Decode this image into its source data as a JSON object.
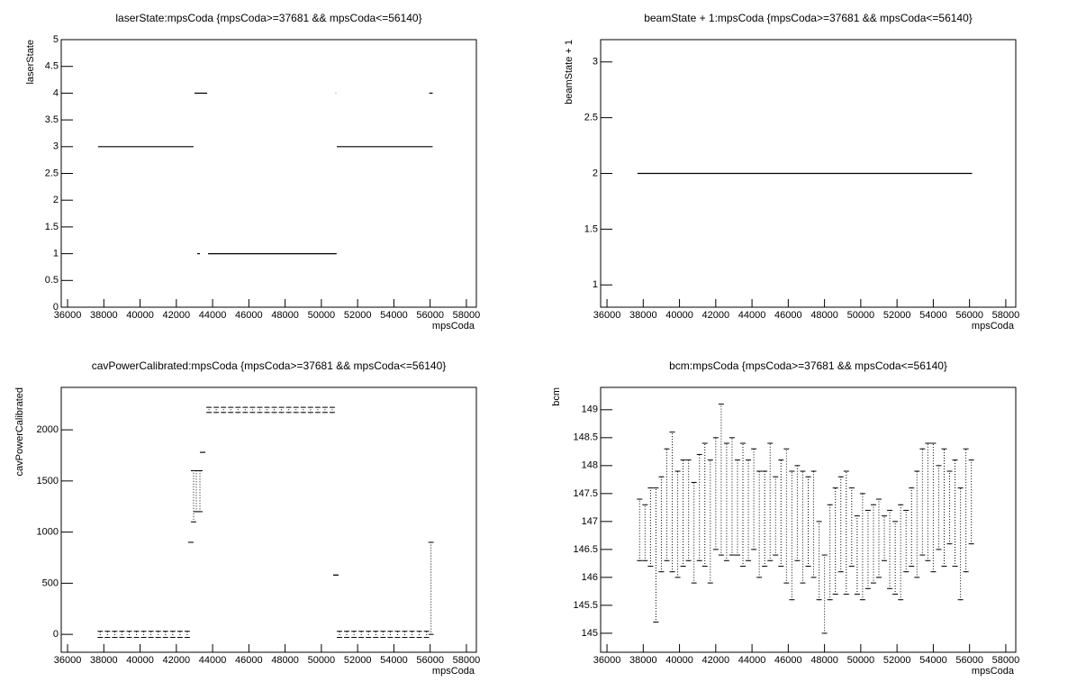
{
  "chart_data": [
    {
      "type": "line",
      "title": "laserState:mpsCoda {mpsCoda>=37681 && mpsCoda<=56140}",
      "xlabel": "mpsCoda",
      "ylabel": "laserState",
      "color": "#000000",
      "series": [
        {
          "x": [
            37681,
            42950
          ],
          "values": [
            3,
            3
          ]
        },
        {
          "x": [
            43000,
            43700
          ],
          "values": [
            4,
            4
          ]
        },
        {
          "x": [
            43150,
            43300
          ],
          "values": [
            1,
            1
          ]
        },
        {
          "x": [
            43750,
            50840
          ],
          "values": [
            1,
            1
          ]
        },
        {
          "x": [
            50790,
            50810
          ],
          "values": [
            4,
            4
          ]
        },
        {
          "x": [
            50850,
            56140
          ],
          "values": [
            3,
            3
          ]
        },
        {
          "x": [
            55950,
            56140
          ],
          "values": [
            4,
            4
          ]
        }
      ],
      "xlim": [
        35650,
        58550
      ],
      "xticks": [
        36000,
        38000,
        40000,
        42000,
        44000,
        46000,
        48000,
        50000,
        52000,
        54000,
        56000,
        58000
      ],
      "ylim": [
        0,
        5
      ],
      "yticks": [
        0,
        0.5,
        1,
        1.5,
        2,
        2.5,
        3,
        3.5,
        4,
        4.5,
        5
      ]
    },
    {
      "type": "line",
      "title": "beamState + 1:mpsCoda {mpsCoda>=37681 && mpsCoda<=56140}",
      "xlabel": "mpsCoda",
      "ylabel": "beamState + 1",
      "color": "#000000",
      "series": [
        {
          "x": [
            37681,
            56140
          ],
          "values": [
            2,
            2
          ]
        }
      ],
      "xlim": [
        35650,
        58550
      ],
      "xticks": [
        36000,
        38000,
        40000,
        42000,
        44000,
        46000,
        48000,
        50000,
        52000,
        54000,
        56000,
        58000
      ],
      "ylim": [
        0.8,
        3.2
      ],
      "yticks": [
        1,
        1.5,
        2,
        2.5,
        3
      ]
    },
    {
      "type": "range",
      "title": "cavPowerCalibrated:mpsCoda {mpsCoda>=37681 && mpsCoda<=56140}",
      "xlabel": "mpsCoda",
      "ylabel": "cavPowerCalibrated",
      "color": "#000000",
      "x": [
        37800,
        38200,
        38600,
        39000,
        39400,
        39800,
        40200,
        40600,
        41000,
        41400,
        41800,
        42200,
        42600,
        42800,
        42950,
        43100,
        43300,
        43450,
        43800,
        44200,
        44600,
        45000,
        45400,
        45800,
        46200,
        46600,
        47000,
        47400,
        47800,
        48200,
        48600,
        49000,
        49400,
        49800,
        50200,
        50600,
        50800,
        51000,
        51400,
        51800,
        52200,
        52600,
        53000,
        53400,
        53800,
        54200,
        54600,
        55000,
        55400,
        55800,
        56050
      ],
      "low": [
        -30,
        -30,
        -30,
        -30,
        -30,
        -30,
        -30,
        -30,
        -30,
        -30,
        -30,
        -30,
        -30,
        900,
        1100,
        1200,
        1200,
        1780,
        2170,
        2170,
        2170,
        2170,
        2170,
        2170,
        2170,
        2170,
        2170,
        2170,
        2170,
        2170,
        2170,
        2170,
        2170,
        2170,
        2170,
        2170,
        580,
        -30,
        -30,
        -30,
        -30,
        -30,
        -30,
        -30,
        -30,
        -30,
        -30,
        -30,
        -30,
        -30,
        0
      ],
      "high": [
        30,
        30,
        30,
        30,
        30,
        30,
        30,
        30,
        30,
        30,
        30,
        30,
        30,
        900,
        1600,
        1600,
        1600,
        1780,
        2220,
        2220,
        2220,
        2220,
        2220,
        2220,
        2220,
        2220,
        2220,
        2220,
        2220,
        2220,
        2220,
        2220,
        2220,
        2220,
        2220,
        2220,
        580,
        30,
        30,
        30,
        30,
        30,
        30,
        30,
        30,
        30,
        30,
        30,
        30,
        30,
        900
      ],
      "xlim": [
        35650,
        58550
      ],
      "xticks": [
        36000,
        38000,
        40000,
        42000,
        44000,
        46000,
        48000,
        50000,
        52000,
        54000,
        56000,
        58000
      ],
      "ylim": [
        -175,
        2415
      ],
      "yticks": [
        0,
        500,
        1000,
        1500,
        2000
      ]
    },
    {
      "type": "range",
      "title": "bcm:mpsCoda {mpsCoda>=37681 && mpsCoda<=56140}",
      "xlabel": "mpsCoda",
      "ylabel": "bcm",
      "color": "#000000",
      "x": [
        37800,
        38100,
        38400,
        38700,
        39000,
        39300,
        39600,
        39900,
        40200,
        40500,
        40800,
        41100,
        41400,
        41700,
        42000,
        42300,
        42600,
        42900,
        43200,
        43500,
        43800,
        44100,
        44400,
        44700,
        45000,
        45300,
        45600,
        45900,
        46200,
        46500,
        46800,
        47100,
        47400,
        47700,
        48000,
        48300,
        48600,
        48900,
        49200,
        49500,
        49800,
        50100,
        50400,
        50700,
        51000,
        51300,
        51600,
        51900,
        52200,
        52500,
        52800,
        53100,
        53400,
        53700,
        54000,
        54300,
        54600,
        54900,
        55200,
        55500,
        55800,
        56100
      ],
      "low": [
        146.3,
        146.3,
        146.2,
        145.2,
        146.1,
        146.3,
        146.1,
        146.0,
        146.2,
        146.3,
        145.9,
        146.3,
        146.2,
        145.9,
        146.5,
        146.4,
        146.3,
        146.4,
        146.4,
        146.2,
        146.3,
        146.5,
        146.0,
        146.2,
        146.3,
        146.4,
        146.2,
        145.9,
        145.6,
        146.3,
        145.9,
        146.2,
        146.0,
        145.6,
        145.0,
        145.6,
        145.7,
        146.1,
        145.7,
        146.2,
        145.7,
        145.6,
        145.8,
        145.9,
        146.0,
        146.3,
        145.8,
        145.7,
        145.6,
        146.1,
        146.2,
        146.0,
        146.4,
        146.3,
        146.1,
        146.5,
        146.2,
        146.6,
        146.2,
        145.6,
        146.1,
        146.6
      ],
      "high": [
        147.4,
        147.3,
        147.6,
        147.6,
        147.8,
        148.3,
        148.6,
        147.9,
        148.1,
        148.1,
        147.7,
        148.2,
        148.4,
        148.1,
        148.5,
        149.1,
        148.4,
        148.5,
        148.1,
        148.4,
        148.1,
        148.3,
        147.9,
        147.9,
        148.4,
        147.8,
        148.1,
        148.3,
        147.9,
        148.0,
        147.9,
        147.8,
        147.9,
        147.0,
        146.4,
        147.3,
        147.6,
        147.8,
        147.9,
        147.6,
        147.1,
        147.5,
        147.2,
        147.3,
        147.4,
        147.1,
        147.2,
        147.0,
        147.3,
        147.2,
        147.6,
        147.9,
        148.3,
        148.4,
        148.4,
        148.0,
        148.3,
        147.9,
        148.1,
        147.6,
        148.3,
        148.1
      ],
      "xlim": [
        35650,
        58550
      ],
      "xticks": [
        36000,
        38000,
        40000,
        42000,
        44000,
        46000,
        48000,
        50000,
        52000,
        54000,
        56000,
        58000
      ],
      "ylim": [
        144.66,
        149.4
      ],
      "yticks": [
        145,
        145.5,
        146,
        146.5,
        147,
        147.5,
        148,
        148.5,
        149
      ]
    }
  ]
}
